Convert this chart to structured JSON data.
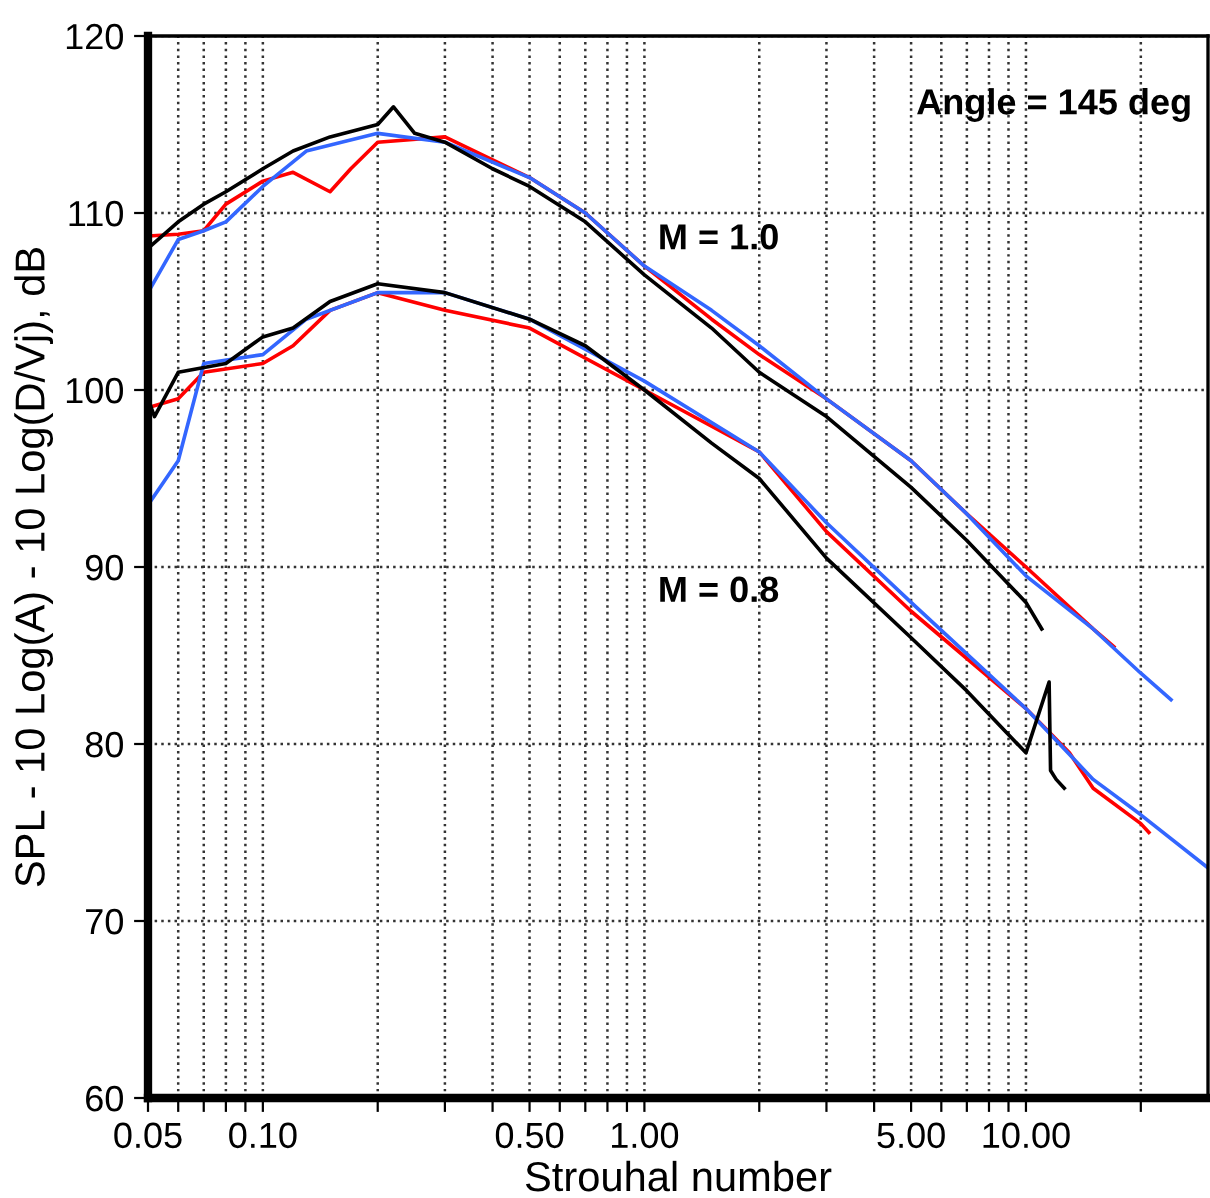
{
  "chart_data": {
    "type": "line",
    "xlabel": "Strouhal number",
    "ylabel": "SPL - 10 Log(A) - 10 Log(D/Vj), dB",
    "log": "x",
    "grid": true,
    "marker": "none",
    "line_style": "solid",
    "xlim": [
      0.05,
      30
    ],
    "ylim": [
      60,
      120
    ],
    "xticks": [
      {
        "value": 0.05,
        "label": "0.05"
      },
      {
        "value": 0.06,
        "label": null
      },
      {
        "value": 0.07,
        "label": null
      },
      {
        "value": 0.08,
        "label": null
      },
      {
        "value": 0.09,
        "label": null
      },
      {
        "value": 0.1,
        "label": "0.10"
      },
      {
        "value": 0.2,
        "label": null
      },
      {
        "value": 0.3,
        "label": null
      },
      {
        "value": 0.4,
        "label": null
      },
      {
        "value": 0.5,
        "label": "0.50"
      },
      {
        "value": 0.6,
        "label": null
      },
      {
        "value": 0.7,
        "label": null
      },
      {
        "value": 0.8,
        "label": null
      },
      {
        "value": 0.9,
        "label": null
      },
      {
        "value": 1,
        "label": "1.00"
      },
      {
        "value": 2,
        "label": null
      },
      {
        "value": 3,
        "label": null
      },
      {
        "value": 4,
        "label": null
      },
      {
        "value": 5,
        "label": "5.00"
      },
      {
        "value": 6,
        "label": null
      },
      {
        "value": 7,
        "label": null
      },
      {
        "value": 8,
        "label": null
      },
      {
        "value": 9,
        "label": null
      },
      {
        "value": 10,
        "label": "10.00"
      },
      {
        "value": 20,
        "label": null
      }
    ],
    "yticks": [
      60,
      70,
      80,
      90,
      100,
      110,
      120
    ],
    "annotations": [
      "Angle = 145 deg",
      "M = 1.0",
      "M = 0.8"
    ],
    "series": [
      {
        "color": "#ff0000",
        "x": [
          0.05,
          0.06,
          0.07,
          0.08,
          0.1,
          0.12,
          0.15,
          0.17,
          0.2,
          0.3,
          0.5,
          0.7,
          1,
          1.5,
          2,
          3,
          5,
          7,
          10,
          15,
          17
        ],
        "values": [
          108.7,
          108.8,
          109,
          110.5,
          111.8,
          112.3,
          111.2,
          112.5,
          114,
          114.3,
          112,
          110,
          107,
          104,
          102,
          99.5,
          96,
          93,
          90,
          86.5,
          85.5
        ]
      },
      {
        "color": "#3366ff",
        "x": [
          0.05,
          0.06,
          0.07,
          0.08,
          0.1,
          0.13,
          0.2,
          0.3,
          0.5,
          0.7,
          1,
          1.5,
          2,
          3,
          5,
          7,
          10,
          15,
          20,
          24
        ],
        "values": [
          105.5,
          108.5,
          109,
          109.5,
          111.5,
          113.5,
          114.5,
          114,
          112,
          110,
          107,
          104.5,
          102.5,
          99.5,
          96,
          93,
          89.5,
          86.5,
          84,
          82.5
        ]
      },
      {
        "color": "#000000",
        "x": [
          0.05,
          0.06,
          0.07,
          0.08,
          0.1,
          0.12,
          0.15,
          0.2,
          0.22,
          0.25,
          0.3,
          0.4,
          0.5,
          0.7,
          1,
          1.5,
          2,
          3,
          5,
          7,
          10,
          11
        ],
        "values": [
          108,
          109.5,
          110.5,
          111.2,
          112.5,
          113.5,
          114.3,
          115,
          116,
          114.5,
          114,
          112.5,
          111.5,
          109.5,
          106.5,
          103.5,
          101,
          98.5,
          94.5,
          91.5,
          88,
          86.5
        ]
      },
      {
        "color": "#ff0000",
        "x": [
          0.05,
          0.06,
          0.07,
          0.1,
          0.12,
          0.15,
          0.2,
          0.3,
          0.5,
          1,
          2,
          3,
          5,
          10,
          13,
          15,
          20,
          21
        ],
        "values": [
          99,
          99.5,
          101,
          101.5,
          102.5,
          104.5,
          105.5,
          104.5,
          103.5,
          100,
          96.5,
          92,
          87.5,
          82,
          79.5,
          77.5,
          75.5,
          75
        ]
      },
      {
        "color": "#3366ff",
        "x": [
          0.05,
          0.06,
          0.07,
          0.1,
          0.13,
          0.2,
          0.3,
          0.5,
          1,
          2,
          3,
          5,
          10,
          15,
          20,
          30
        ],
        "values": [
          93.5,
          96,
          101.5,
          102,
          104,
          105.5,
          105.5,
          104,
          100.5,
          96.5,
          92.5,
          88,
          82,
          78,
          76,
          73
        ]
      },
      {
        "color": "#000000",
        "x": [
          0.05,
          0.052,
          0.06,
          0.08,
          0.1,
          0.12,
          0.15,
          0.2,
          0.3,
          0.5,
          0.7,
          1,
          1.5,
          2,
          3,
          5,
          7,
          10,
          11.5,
          11.6,
          12,
          12.6
        ],
        "values": [
          99.5,
          98.5,
          101,
          101.5,
          103,
          103.5,
          105,
          106,
          105.5,
          104,
          102.5,
          100,
          97,
          95,
          90.5,
          86,
          83,
          79.5,
          83.5,
          78.5,
          78,
          77.5
        ]
      }
    ]
  }
}
